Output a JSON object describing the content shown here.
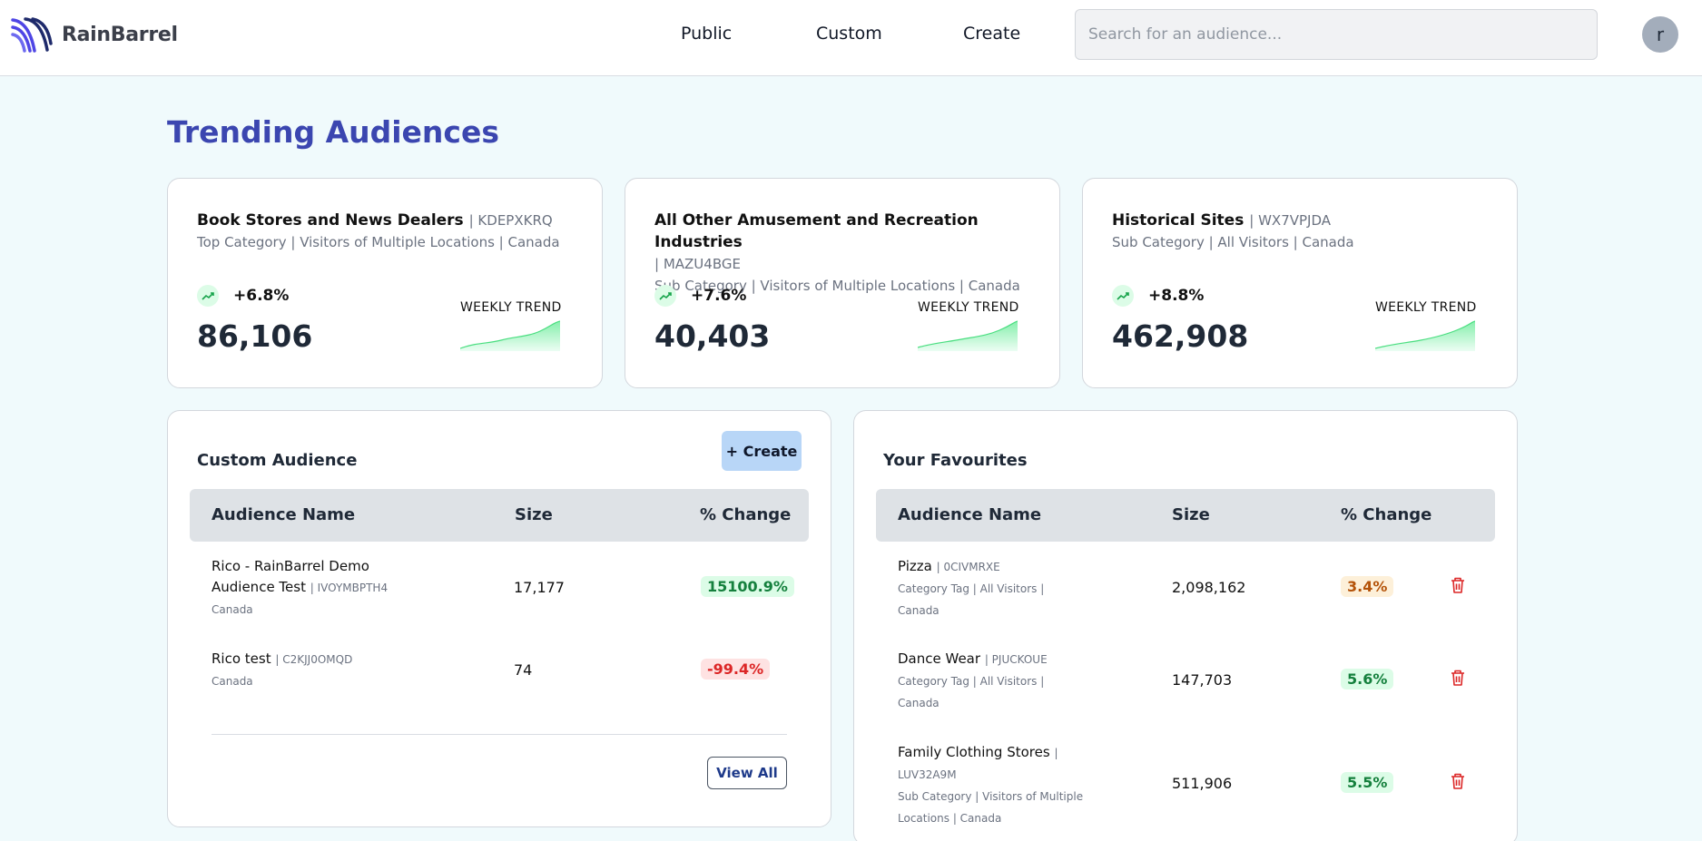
{
  "app": {
    "name": "RainBarrel"
  },
  "nav": {
    "items": [
      "Public",
      "Custom",
      "Create"
    ]
  },
  "search": {
    "placeholder": "Search for an audience..."
  },
  "user": {
    "avatar_initial": "r"
  },
  "page": {
    "title": "Trending Audiences"
  },
  "colors": {
    "accent": "#3b46b0",
    "positive": "#15803d",
    "negative": "#dc2626",
    "warning": "#b45309"
  },
  "trending": [
    {
      "name": "Book Stores and News Dealers",
      "id": "| KDEPXKRQ",
      "meta": "Top Category | Visitors of Multiple Locations | Canada",
      "change": "+6.8%",
      "size": "86,106",
      "trend_label": "WEEKLY TREND",
      "trend_icon": "trending-up-icon"
    },
    {
      "name": "All Other Amusement and Recreation Industries",
      "id": "| MAZU4BGE",
      "meta": "Sub Category | Visitors of Multiple Locations | Canada",
      "change": "+7.6%",
      "size": "40,403",
      "trend_label": "WEEKLY TREND",
      "trend_icon": "trending-up-icon"
    },
    {
      "name": "Historical Sites",
      "id": "| WX7VPJDA",
      "meta": "Sub Category | All Visitors | Canada",
      "change": "+8.8%",
      "size": "462,908",
      "trend_label": "WEEKLY TREND",
      "trend_icon": "trending-up-icon"
    }
  ],
  "custom": {
    "title": "Custom Audience",
    "create_label": "+ Create",
    "columns": [
      "Audience Name",
      "Size",
      "% Change"
    ],
    "rows": [
      {
        "name_line1": "Rico - RainBarrel Demo",
        "name_line2": "Audience Test",
        "id": "| IVOYMBPTH4",
        "meta": "Canada",
        "size": "17,177",
        "change": "15100.9%"
      },
      {
        "name_line1": "Rico test",
        "id": "| C2KJJ0OMQD",
        "meta": "Canada",
        "size": "74",
        "change": "-99.4%"
      }
    ],
    "view_all_label": "View All"
  },
  "favourites": {
    "title": "Your Favourites",
    "columns": [
      "Audience Name",
      "Size",
      "% Change"
    ],
    "rows": [
      {
        "name": "Pizza",
        "id": "| 0CIVMRXE",
        "meta1": "Category Tag | All Visitors |",
        "meta2": "Canada",
        "size": "2,098,162",
        "change": "3.4%"
      },
      {
        "name": "Dance Wear",
        "id": "| PJUCKOUE",
        "meta1": "Category Tag | All Visitors |",
        "meta2": "Canada",
        "size": "147,703",
        "change": "5.6%"
      },
      {
        "name": "Family Clothing Stores",
        "id_line": "|",
        "id": "LUV32A9M",
        "meta1": "Sub Category | Visitors of Multiple",
        "meta2": "Locations | Canada",
        "size": "511,906",
        "change": "5.5%"
      }
    ]
  }
}
